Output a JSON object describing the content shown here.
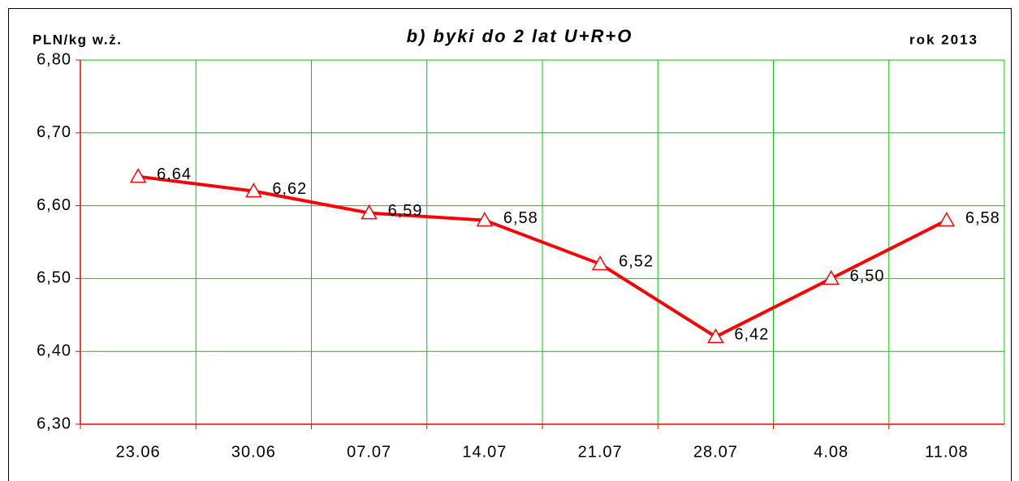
{
  "chart_data": {
    "type": "line",
    "title": "b) byki do 2 lat U+R+O",
    "y_axis_label": "PLN/kg w.ż.",
    "annotation": "rok 2013",
    "categories": [
      "23.06",
      "30.06",
      "07.07",
      "14.07",
      "21.07",
      "28.07",
      "4.08",
      "11.08"
    ],
    "values": [
      6.64,
      6.62,
      6.59,
      6.58,
      6.52,
      6.42,
      6.5,
      6.58
    ],
    "value_labels": [
      "6,64",
      "6,62",
      "6,59",
      "6,58",
      "6,52",
      "6,42",
      "6,50",
      "6,58"
    ],
    "color": "#ff0000",
    "ylim": [
      6.3,
      6.8
    ],
    "yticks": [
      {
        "value": 6.3,
        "label": "6,30"
      },
      {
        "value": 6.4,
        "label": "6,40"
      },
      {
        "value": 6.5,
        "label": "6,50"
      },
      {
        "value": 6.6,
        "label": "6,60"
      },
      {
        "value": 6.7,
        "label": "6,70"
      },
      {
        "value": 6.8,
        "label": "6,80"
      }
    ],
    "grid": true,
    "grid_color": "#00cc00"
  }
}
